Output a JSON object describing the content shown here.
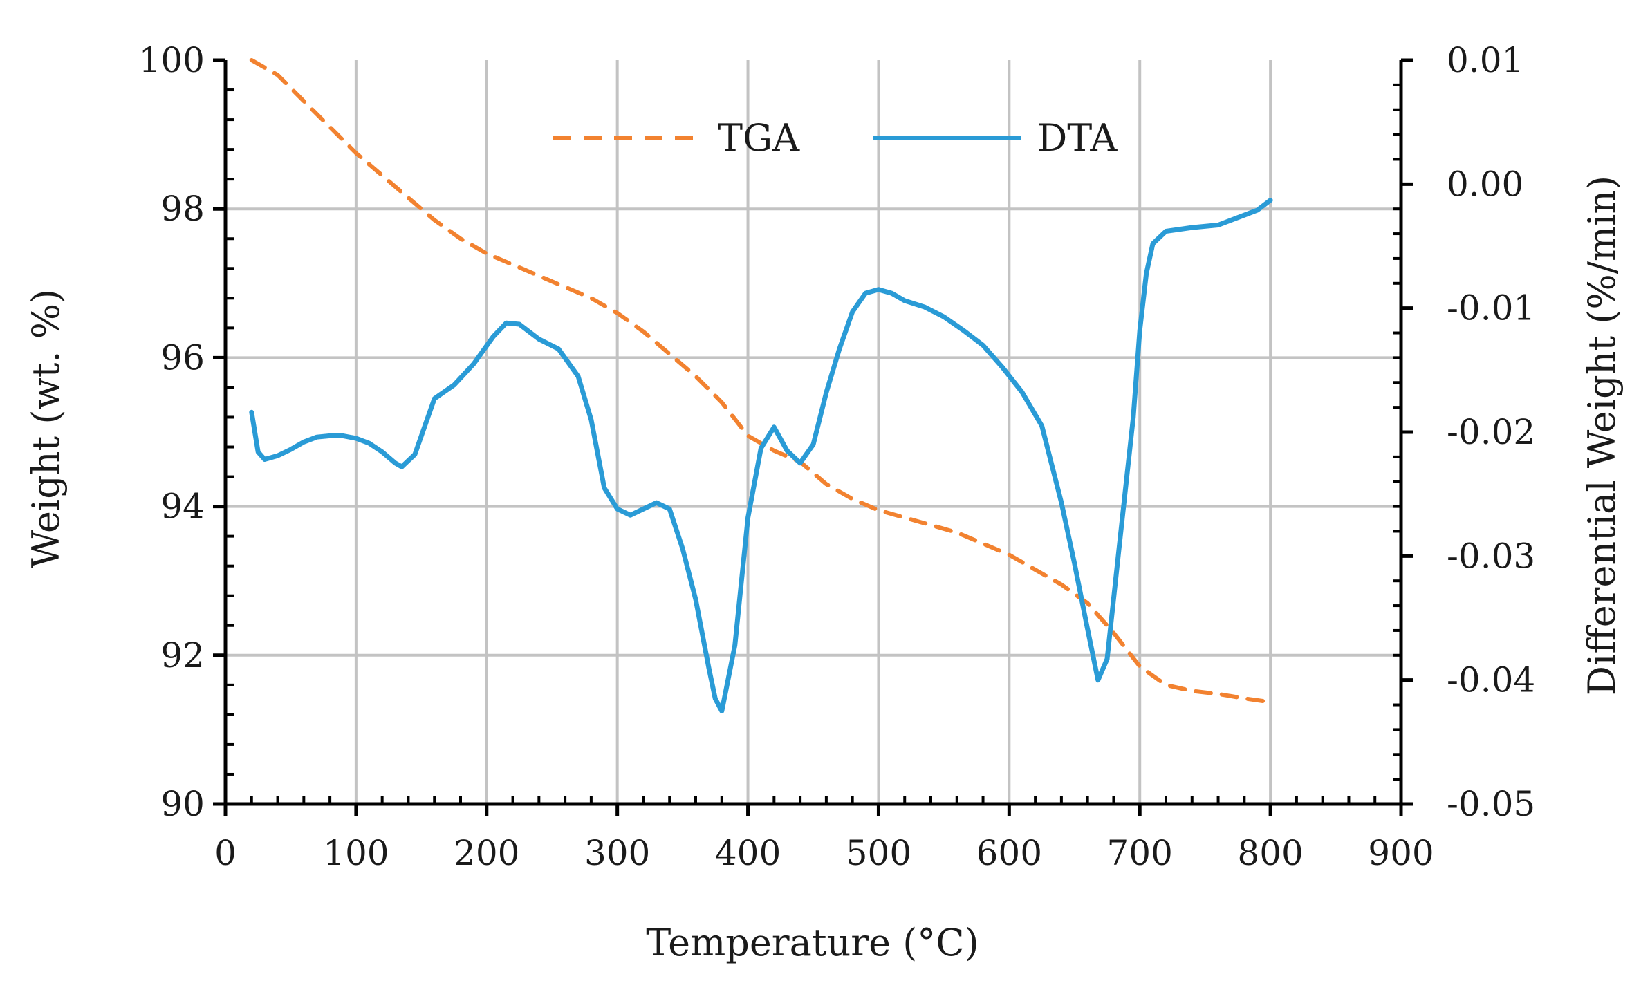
{
  "chart_data": {
    "type": "line",
    "xlabel": "Temperature (°C)",
    "ylabel": "Weight (wt. %)",
    "y2label": "Differential Weight (%/min)",
    "xlim": [
      0,
      900
    ],
    "ylim": [
      90,
      100
    ],
    "y2lim": [
      -0.05,
      0.01
    ],
    "x_ticks": [
      "0",
      "100",
      "200",
      "300",
      "400",
      "500",
      "600",
      "700",
      "800",
      "900"
    ],
    "y_ticks": [
      "90",
      "92",
      "94",
      "96",
      "98",
      "100"
    ],
    "y2_ticks": [
      "-0.05",
      "-0.04",
      "-0.03",
      "-0.02",
      "-0.01",
      "0.00",
      "0.01"
    ],
    "grid": true,
    "legend_position": "top-center",
    "series": [
      {
        "name": "TGA",
        "axis": "left",
        "style": "dashed",
        "color": "#F28230",
        "x": [
          20,
          40,
          60,
          80,
          100,
          120,
          140,
          160,
          180,
          200,
          220,
          240,
          260,
          280,
          300,
          320,
          340,
          360,
          380,
          400,
          420,
          440,
          460,
          480,
          500,
          520,
          540,
          560,
          580,
          600,
          620,
          640,
          660,
          680,
          700,
          720,
          740,
          760,
          780,
          800
        ],
        "values": [
          100.0,
          99.8,
          99.45,
          99.1,
          98.75,
          98.45,
          98.15,
          97.85,
          97.6,
          97.4,
          97.25,
          97.1,
          96.95,
          96.8,
          96.6,
          96.35,
          96.05,
          95.75,
          95.4,
          94.95,
          94.75,
          94.6,
          94.3,
          94.1,
          93.95,
          93.85,
          93.75,
          93.65,
          93.5,
          93.35,
          93.15,
          92.95,
          92.7,
          92.3,
          91.85,
          91.6,
          91.52,
          91.48,
          91.42,
          91.37
        ]
      },
      {
        "name": "DTA",
        "axis": "right",
        "style": "solid",
        "color": "#2A9BD6",
        "x": [
          20,
          25,
          30,
          40,
          50,
          60,
          70,
          80,
          90,
          100,
          110,
          120,
          130,
          135,
          145,
          160,
          175,
          190,
          205,
          215,
          225,
          240,
          255,
          270,
          280,
          290,
          300,
          310,
          320,
          330,
          340,
          350,
          360,
          370,
          375,
          380,
          390,
          400,
          410,
          420,
          430,
          440,
          450,
          460,
          470,
          480,
          490,
          500,
          510,
          520,
          535,
          550,
          565,
          580,
          595,
          610,
          625,
          640,
          650,
          660,
          668,
          675,
          685,
          695,
          700,
          705,
          710,
          720,
          740,
          760,
          780,
          790,
          800
        ],
        "values": [
          -0.0184,
          -0.0216,
          -0.0222,
          -0.0219,
          -0.0214,
          -0.0208,
          -0.0204,
          -0.0203,
          -0.0203,
          -0.0205,
          -0.0209,
          -0.0216,
          -0.0225,
          -0.0228,
          -0.0218,
          -0.0173,
          -0.0162,
          -0.0145,
          -0.0123,
          -0.0112,
          -0.0113,
          -0.0125,
          -0.0133,
          -0.0155,
          -0.019,
          -0.0245,
          -0.0262,
          -0.0267,
          -0.0262,
          -0.0257,
          -0.0262,
          -0.0294,
          -0.0335,
          -0.039,
          -0.0415,
          -0.0425,
          -0.0372,
          -0.0269,
          -0.0213,
          -0.0196,
          -0.0215,
          -0.0225,
          -0.021,
          -0.0168,
          -0.0133,
          -0.0103,
          -0.0088,
          -0.0085,
          -0.0088,
          -0.0094,
          -0.0099,
          -0.0107,
          -0.0118,
          -0.013,
          -0.0148,
          -0.0168,
          -0.0195,
          -0.0257,
          -0.0306,
          -0.0359,
          -0.04,
          -0.0383,
          -0.0285,
          -0.0188,
          -0.0118,
          -0.0072,
          -0.0048,
          -0.0038,
          -0.0035,
          -0.0033,
          -0.0025,
          -0.0021,
          -0.0013
        ]
      }
    ]
  }
}
